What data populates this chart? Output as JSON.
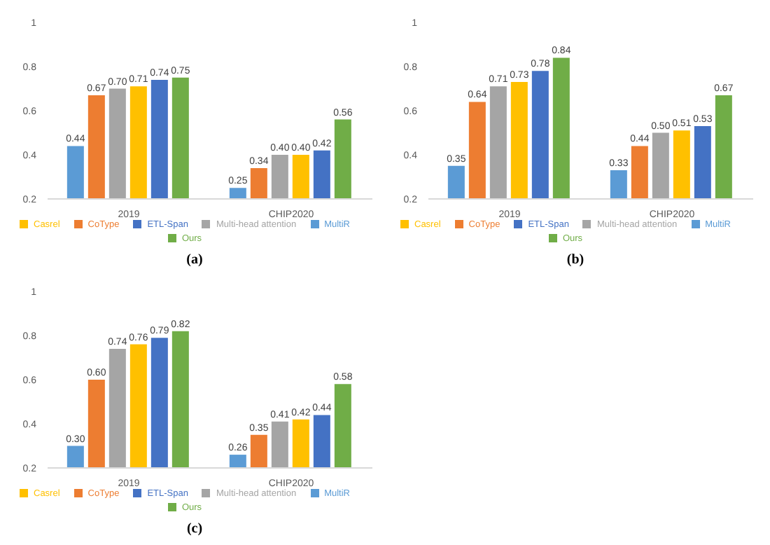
{
  "chart_data": [
    {
      "type": "bar",
      "title": "(a)",
      "categories": [
        "2019",
        "CHIP2020"
      ],
      "ylim": [
        0.2,
        1
      ],
      "yticks": [
        0.2,
        0.4,
        0.6,
        0.8,
        1
      ],
      "grid": false,
      "legend": "bottom",
      "series": [
        {
          "name": "MultiR",
          "color": "#5b9bd5",
          "values": [
            0.44,
            0.25
          ],
          "value_labels": [
            "0.44",
            "0.25"
          ]
        },
        {
          "name": "CoType",
          "color": "#ed7d31",
          "values": [
            0.67,
            0.34
          ],
          "value_labels": [
            "0.67",
            "0.34"
          ]
        },
        {
          "name": "Multi-head attention",
          "color": "#a5a5a5",
          "values": [
            0.7,
            0.4
          ],
          "value_labels": [
            "0.70",
            "0.40"
          ]
        },
        {
          "name": "Casrel",
          "color": "#ffc000",
          "values": [
            0.71,
            0.4
          ],
          "value_labels": [
            "0.71",
            "0.40"
          ]
        },
        {
          "name": "ETL-Span",
          "color": "#4472c4",
          "values": [
            0.74,
            0.42
          ],
          "value_labels": [
            "0.74",
            "0.42"
          ]
        },
        {
          "name": "Ours",
          "color": "#70ad47",
          "values": [
            0.75,
            0.56
          ],
          "value_labels": [
            "0.75",
            "0.56"
          ]
        }
      ]
    },
    {
      "type": "bar",
      "title": "(b)",
      "categories": [
        "2019",
        "CHIP2020"
      ],
      "ylim": [
        0.2,
        1
      ],
      "yticks": [
        0.2,
        0.4,
        0.6,
        0.8,
        1
      ],
      "grid": false,
      "legend": "bottom",
      "series": [
        {
          "name": "MultiR",
          "color": "#5b9bd5",
          "values": [
            0.35,
            0.33
          ],
          "value_labels": [
            "0.35",
            "0.33"
          ]
        },
        {
          "name": "CoType",
          "color": "#ed7d31",
          "values": [
            0.64,
            0.44
          ],
          "value_labels": [
            "0.64",
            "0.44"
          ]
        },
        {
          "name": "Multi-head attention",
          "color": "#a5a5a5",
          "values": [
            0.71,
            0.5
          ],
          "value_labels": [
            "0.71",
            "0.50"
          ]
        },
        {
          "name": "Casrel",
          "color": "#ffc000",
          "values": [
            0.73,
            0.51
          ],
          "value_labels": [
            "0.73",
            "0.51"
          ]
        },
        {
          "name": "ETL-Span",
          "color": "#4472c4",
          "values": [
            0.78,
            0.53
          ],
          "value_labels": [
            "0.78",
            "0.53"
          ]
        },
        {
          "name": "Ours",
          "color": "#70ad47",
          "values": [
            0.84,
            0.67
          ],
          "value_labels": [
            "0.84",
            "0.67"
          ]
        }
      ]
    },
    {
      "type": "bar",
      "title": "(c)",
      "categories": [
        "2019",
        "CHIP2020"
      ],
      "ylim": [
        0.2,
        1
      ],
      "yticks": [
        0.2,
        0.4,
        0.6,
        0.8,
        1
      ],
      "grid": false,
      "legend": "bottom",
      "series": [
        {
          "name": "MultiR",
          "color": "#5b9bd5",
          "values": [
            0.3,
            0.26
          ],
          "value_labels": [
            "0.30",
            "0.26"
          ]
        },
        {
          "name": "CoType",
          "color": "#ed7d31",
          "values": [
            0.6,
            0.35
          ],
          "value_labels": [
            "0.60",
            "0.35"
          ]
        },
        {
          "name": "Multi-head attention",
          "color": "#a5a5a5",
          "values": [
            0.74,
            0.41
          ],
          "value_labels": [
            "0.74",
            "0.41"
          ]
        },
        {
          "name": "Casrel",
          "color": "#ffc000",
          "values": [
            0.76,
            0.42
          ],
          "value_labels": [
            "0.76",
            "0.42"
          ]
        },
        {
          "name": "ETL-Span",
          "color": "#4472c4",
          "values": [
            0.79,
            0.44
          ],
          "value_labels": [
            "0.79",
            "0.44"
          ]
        },
        {
          "name": "Ours",
          "color": "#70ad47",
          "values": [
            0.82,
            0.58
          ],
          "value_labels": [
            "0.82",
            "0.58"
          ]
        }
      ]
    }
  ]
}
